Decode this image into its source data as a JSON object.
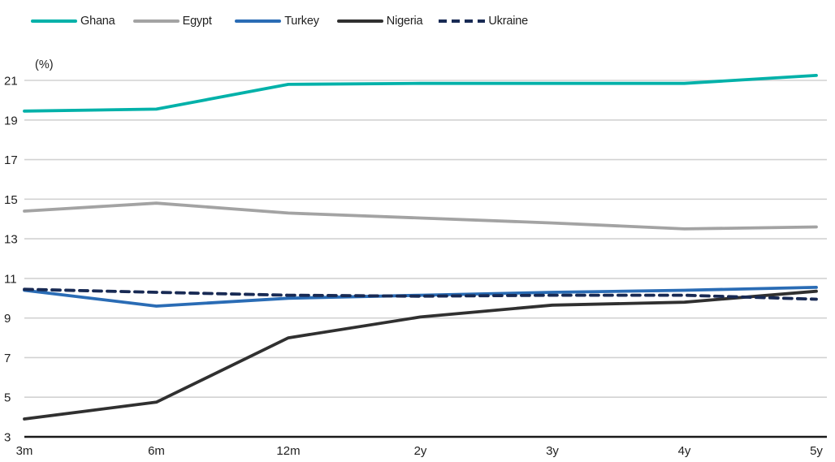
{
  "chart_data": {
    "type": "line",
    "title": "",
    "unit_label": "(%)",
    "categories": [
      "3m",
      "6m",
      "12m",
      "2y",
      "3y",
      "4y",
      "5y"
    ],
    "series": [
      {
        "name": "Ghana",
        "color": "#00b1a9",
        "style": "solid",
        "values": [
          19.45,
          19.55,
          20.8,
          20.85,
          20.85,
          20.85,
          21.25
        ]
      },
      {
        "name": "Egypt",
        "color": "#a3a3a3",
        "style": "solid",
        "values": [
          14.4,
          14.8,
          14.3,
          14.05,
          13.8,
          13.5,
          13.6
        ]
      },
      {
        "name": "Turkey",
        "color": "#2a6cb5",
        "style": "solid",
        "values": [
          10.4,
          9.6,
          10.0,
          10.15,
          10.3,
          10.4,
          10.55
        ]
      },
      {
        "name": "Nigeria",
        "color": "#303030",
        "style": "solid",
        "values": [
          3.9,
          4.75,
          8.0,
          9.05,
          9.65,
          9.8,
          10.35
        ]
      },
      {
        "name": "Ukraine",
        "color": "#182a54",
        "style": "dashed",
        "values": [
          10.45,
          10.3,
          10.15,
          10.1,
          10.15,
          10.15,
          9.95
        ]
      }
    ],
    "y_axis": {
      "min": 3,
      "max": 21,
      "step": 2,
      "tick_labels": [
        "3",
        "5",
        "7",
        "9",
        "11",
        "13",
        "15",
        "17",
        "19",
        "21"
      ]
    },
    "x_axis": {
      "tick_labels": [
        "3m",
        "6m",
        "12m",
        "2y",
        "3y",
        "4y",
        "5y"
      ]
    },
    "grid": true,
    "legend_position": "top"
  },
  "style": {
    "gridline_color": "#d2d2d2",
    "axis_color": "#1a1a1a",
    "text_color": "#1f1f1f",
    "background": "#ffffff"
  }
}
